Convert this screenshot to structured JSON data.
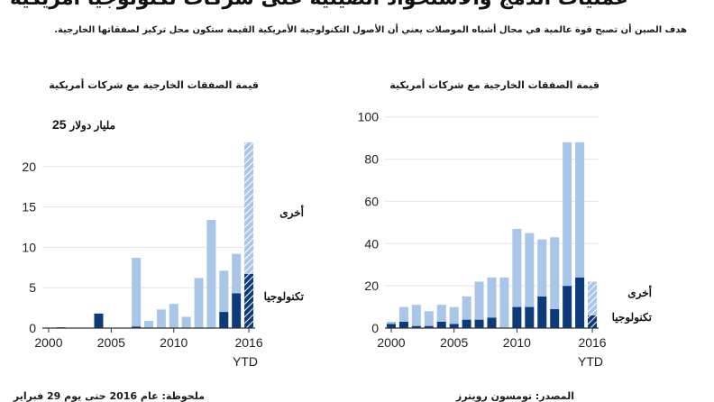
{
  "headline": "عمليات الدمج والاستحواذ الصينية على شركات تكنولوجيا أمريكية",
  "subtitle": "هدف الصين أن تصبح قوة عالمية في مجال أشباه الموصلات يعني أن الأصول التكنولوجية الأمريكية القيمة ستكون محل تركيز لصفقاتها الخارجية.",
  "left_title": "قيمة الصفقات الخارجية مع شركات أمريكية",
  "right_title": "قيمة الصفقات الخارجية مع شركات أمريكية",
  "footer_note": "ملحوظة: عام 2016 حتى يوم 29 فبراير",
  "footer_source": "المصدر: تومسون رويترز",
  "colors": {
    "tech": "#0d3b7a",
    "other": "#a9c6e8"
  },
  "chart_data": [
    {
      "type": "bar",
      "stacked": true,
      "unit_label_number": "25",
      "unit_label_text": "مليار دولار",
      "categories": [
        2000,
        2001,
        2002,
        2003,
        2004,
        2005,
        2006,
        2007,
        2008,
        2009,
        2010,
        2011,
        2012,
        2013,
        2014,
        2015,
        2016
      ],
      "series": [
        {
          "name": "تكنولوجيا",
          "values": [
            0,
            0.1,
            0,
            0,
            1.8,
            0,
            0,
            0.2,
            0,
            0,
            0,
            0,
            0,
            0,
            2.0,
            4.3,
            6.7
          ]
        },
        {
          "name": "أخرى",
          "values": [
            0,
            0,
            0,
            0,
            0,
            0,
            0,
            8.5,
            0.9,
            2.3,
            3.0,
            1.4,
            6.2,
            13.4,
            5.1,
            4.9,
            16.3
          ]
        }
      ],
      "last_bar_ytd": true,
      "ylim": [
        0,
        25
      ],
      "yticks": [
        0,
        5,
        10,
        15,
        20
      ],
      "xticks": [
        2000,
        2005,
        2010,
        2016
      ],
      "ytd_label": "YTD",
      "legend_position": "right"
    },
    {
      "type": "bar",
      "stacked": true,
      "categories": [
        2000,
        2001,
        2002,
        2003,
        2004,
        2005,
        2006,
        2007,
        2008,
        2009,
        2010,
        2011,
        2012,
        2013,
        2014,
        2015,
        2016
      ],
      "series": [
        {
          "name": "تكنولوجيا",
          "values": [
            2,
            3,
            1,
            1,
            3,
            2,
            4,
            4,
            5,
            0,
            10,
            10,
            15,
            9,
            20,
            24,
            6
          ]
        },
        {
          "name": "أخرى",
          "values": [
            1,
            7,
            10,
            7,
            8,
            8,
            11,
            18,
            19,
            24,
            37,
            35,
            27,
            34,
            68,
            64,
            16
          ]
        }
      ],
      "last_bar_ytd": true,
      "ylim": [
        0,
        105
      ],
      "yticks": [
        0,
        20,
        40,
        60,
        80,
        100
      ],
      "xticks": [
        2000,
        2005,
        2010,
        2016
      ],
      "ytd_label": "YTD",
      "legend_position": "right"
    }
  ]
}
